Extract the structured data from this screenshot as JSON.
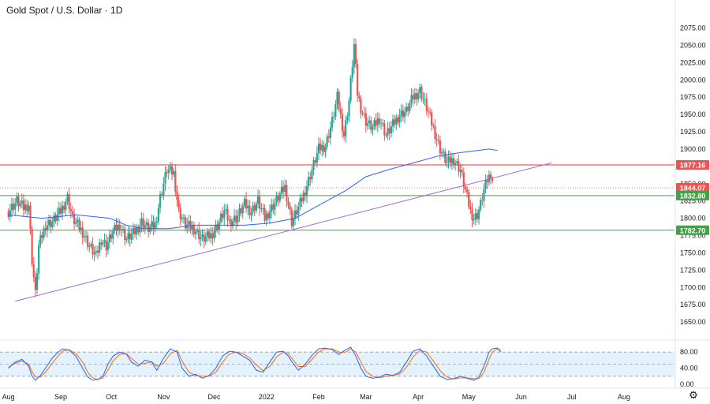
{
  "header": {
    "title": "Gold Spot / U.S. Dollar · 1D"
  },
  "colors": {
    "up": "#26a69a",
    "down": "#ef5350",
    "ma": "#2962ff",
    "trendline": "#9c6ade",
    "resistance": "#e53935",
    "support": "#43a047",
    "price_label": "#ef5350",
    "stoch_k": "#2962ff",
    "stoch_d": "#ff6d00",
    "stoch_band": "#e3f2fd"
  },
  "chart_data": {
    "type": "candlestick",
    "title": "Gold Spot / U.S. Dollar · 1D",
    "price_axis": {
      "range": [
        1625,
        2095
      ],
      "ticks": [
        "2075.00",
        "2050.00",
        "2025.00",
        "2000.00",
        "1975.00",
        "1950.00",
        "1925.00",
        "1900.00",
        "1875.00",
        "1850.00",
        "1825.00",
        "1800.00",
        "1775.00",
        "1750.00",
        "1725.00",
        "1700.00",
        "1675.00",
        "1650.00"
      ]
    },
    "time_axis": {
      "labels": [
        {
          "label": "Aug",
          "day": 0
        },
        {
          "label": "Sep",
          "day": 31
        },
        {
          "label": "Oct",
          "day": 61
        },
        {
          "label": "Nov",
          "day": 92
        },
        {
          "label": "Dec",
          "day": 122
        },
        {
          "label": "2022",
          "day": 153
        },
        {
          "label": "Feb",
          "day": 184
        },
        {
          "label": "Mar",
          "day": 212
        },
        {
          "label": "Apr",
          "day": 243
        },
        {
          "label": "May",
          "day": 273
        },
        {
          "label": "Jun",
          "day": 304
        },
        {
          "label": "Jul",
          "day": 334
        },
        {
          "label": "Aug",
          "day": 365
        }
      ],
      "range_days": [
        -5,
        395
      ]
    },
    "horizontal_levels": [
      {
        "value": 1877.16,
        "label": "1877.16",
        "kind": "resistance"
      },
      {
        "value": 1844.07,
        "label": "1844.07",
        "kind": "current"
      },
      {
        "value": 1832.8,
        "label": "1832.80",
        "kind": "support"
      },
      {
        "value": 1782.7,
        "label": "1782.70",
        "kind": "support"
      }
    ],
    "trendline": {
      "from": {
        "day": 4,
        "price": 1680
      },
      "to": {
        "day": 322,
        "price": 1880
      }
    },
    "ohlc_anchor_prices": [
      [
        0,
        1810
      ],
      [
        5,
        1825
      ],
      [
        9,
        1815
      ],
      [
        12,
        1820
      ],
      [
        14,
        1740
      ],
      [
        16,
        1690
      ],
      [
        18,
        1760
      ],
      [
        22,
        1790
      ],
      [
        26,
        1795
      ],
      [
        31,
        1810
      ],
      [
        35,
        1830
      ],
      [
        38,
        1800
      ],
      [
        44,
        1780
      ],
      [
        48,
        1760
      ],
      [
        52,
        1745
      ],
      [
        55,
        1770
      ],
      [
        58,
        1760
      ],
      [
        62,
        1780
      ],
      [
        66,
        1790
      ],
      [
        70,
        1770
      ],
      [
        75,
        1780
      ],
      [
        79,
        1795
      ],
      [
        83,
        1785
      ],
      [
        87,
        1790
      ],
      [
        90,
        1830
      ],
      [
        94,
        1870
      ],
      [
        98,
        1865
      ],
      [
        101,
        1810
      ],
      [
        105,
        1790
      ],
      [
        110,
        1785
      ],
      [
        115,
        1770
      ],
      [
        120,
        1775
      ],
      [
        124,
        1790
      ],
      [
        128,
        1810
      ],
      [
        131,
        1795
      ],
      [
        135,
        1800
      ],
      [
        140,
        1820
      ],
      [
        144,
        1810
      ],
      [
        148,
        1825
      ],
      [
        152,
        1800
      ],
      [
        156,
        1815
      ],
      [
        160,
        1830
      ],
      [
        164,
        1845
      ],
      [
        168,
        1795
      ],
      [
        172,
        1815
      ],
      [
        176,
        1840
      ],
      [
        180,
        1870
      ],
      [
        184,
        1900
      ],
      [
        188,
        1905
      ],
      [
        192,
        1940
      ],
      [
        195,
        1975
      ],
      [
        199,
        1920
      ],
      [
        202,
        1970
      ],
      [
        205,
        2050
      ],
      [
        207,
        1980
      ],
      [
        209,
        1960
      ],
      [
        212,
        1940
      ],
      [
        216,
        1930
      ],
      [
        220,
        1945
      ],
      [
        224,
        1920
      ],
      [
        228,
        1935
      ],
      [
        232,
        1950
      ],
      [
        236,
        1955
      ],
      [
        240,
        1975
      ],
      [
        244,
        1985
      ],
      [
        248,
        1960
      ],
      [
        252,
        1930
      ],
      [
        256,
        1900
      ],
      [
        260,
        1880
      ],
      [
        264,
        1885
      ],
      [
        268,
        1870
      ],
      [
        271,
        1840
      ],
      [
        274,
        1810
      ],
      [
        276,
        1800
      ],
      [
        278,
        1805
      ],
      [
        280,
        1820
      ],
      [
        282,
        1840
      ],
      [
        284,
        1855
      ],
      [
        286,
        1865
      ],
      [
        287,
        1856
      ]
    ],
    "moving_average": {
      "points": [
        [
          0,
          1805
        ],
        [
          20,
          1800
        ],
        [
          40,
          1805
        ],
        [
          60,
          1800
        ],
        [
          70,
          1790
        ],
        [
          80,
          1785
        ],
        [
          95,
          1785
        ],
        [
          110,
          1790
        ],
        [
          125,
          1790
        ],
        [
          140,
          1790
        ],
        [
          155,
          1793
        ],
        [
          170,
          1800
        ],
        [
          185,
          1820
        ],
        [
          200,
          1840
        ],
        [
          212,
          1860
        ],
        [
          225,
          1870
        ],
        [
          240,
          1880
        ],
        [
          255,
          1890
        ],
        [
          268,
          1895
        ],
        [
          275,
          1897
        ],
        [
          285,
          1900
        ],
        [
          290,
          1898
        ]
      ]
    },
    "stochastic": {
      "range": [
        0,
        100
      ],
      "ticks": [
        "80.00",
        "40.00",
        "0.00"
      ],
      "bands": [
        20,
        50,
        80
      ],
      "k_values": [
        [
          0,
          40
        ],
        [
          4,
          55
        ],
        [
          8,
          62
        ],
        [
          12,
          45
        ],
        [
          14,
          20
        ],
        [
          16,
          10
        ],
        [
          19,
          22
        ],
        [
          22,
          40
        ],
        [
          26,
          65
        ],
        [
          29,
          78
        ],
        [
          32,
          88
        ],
        [
          36,
          85
        ],
        [
          40,
          70
        ],
        [
          44,
          40
        ],
        [
          47,
          18
        ],
        [
          50,
          10
        ],
        [
          53,
          12
        ],
        [
          56,
          20
        ],
        [
          59,
          50
        ],
        [
          62,
          70
        ],
        [
          66,
          80
        ],
        [
          70,
          75
        ],
        [
          73,
          55
        ],
        [
          77,
          45
        ],
        [
          81,
          60
        ],
        [
          85,
          55
        ],
        [
          88,
          35
        ],
        [
          92,
          65
        ],
        [
          96,
          88
        ],
        [
          100,
          80
        ],
        [
          103,
          40
        ],
        [
          107,
          20
        ],
        [
          111,
          25
        ],
        [
          115,
          15
        ],
        [
          119,
          22
        ],
        [
          123,
          40
        ],
        [
          127,
          70
        ],
        [
          131,
          82
        ],
        [
          135,
          80
        ],
        [
          139,
          70
        ],
        [
          143,
          60
        ],
        [
          147,
          35
        ],
        [
          151,
          30
        ],
        [
          155,
          55
        ],
        [
          159,
          80
        ],
        [
          163,
          82
        ],
        [
          166,
          70
        ],
        [
          169,
          50
        ],
        [
          172,
          35
        ],
        [
          176,
          50
        ],
        [
          180,
          72
        ],
        [
          184,
          88
        ],
        [
          188,
          90
        ],
        [
          192,
          86
        ],
        [
          196,
          74
        ],
        [
          200,
          86
        ],
        [
          203,
          92
        ],
        [
          206,
          70
        ],
        [
          209,
          40
        ],
        [
          212,
          20
        ],
        [
          216,
          15
        ],
        [
          220,
          18
        ],
        [
          224,
          25
        ],
        [
          228,
          22
        ],
        [
          232,
          30
        ],
        [
          236,
          55
        ],
        [
          240,
          82
        ],
        [
          244,
          88
        ],
        [
          248,
          70
        ],
        [
          252,
          45
        ],
        [
          256,
          20
        ],
        [
          260,
          12
        ],
        [
          264,
          14
        ],
        [
          268,
          20
        ],
        [
          272,
          15
        ],
        [
          276,
          10
        ],
        [
          279,
          18
        ],
        [
          282,
          45
        ],
        [
          285,
          80
        ],
        [
          287,
          88
        ],
        [
          290,
          90
        ],
        [
          292,
          80
        ]
      ],
      "d_values": [
        [
          0,
          42
        ],
        [
          4,
          52
        ],
        [
          8,
          58
        ],
        [
          12,
          50
        ],
        [
          14,
          32
        ],
        [
          16,
          18
        ],
        [
          19,
          18
        ],
        [
          22,
          30
        ],
        [
          26,
          52
        ],
        [
          29,
          68
        ],
        [
          32,
          82
        ],
        [
          36,
          86
        ],
        [
          40,
          76
        ],
        [
          44,
          55
        ],
        [
          47,
          30
        ],
        [
          50,
          16
        ],
        [
          53,
          12
        ],
        [
          56,
          16
        ],
        [
          59,
          35
        ],
        [
          62,
          58
        ],
        [
          66,
          74
        ],
        [
          70,
          76
        ],
        [
          73,
          64
        ],
        [
          77,
          50
        ],
        [
          81,
          52
        ],
        [
          85,
          56
        ],
        [
          88,
          45
        ],
        [
          92,
          52
        ],
        [
          96,
          76
        ],
        [
          100,
          84
        ],
        [
          103,
          58
        ],
        [
          107,
          30
        ],
        [
          111,
          22
        ],
        [
          115,
          20
        ],
        [
          119,
          20
        ],
        [
          123,
          30
        ],
        [
          127,
          55
        ],
        [
          131,
          75
        ],
        [
          135,
          80
        ],
        [
          139,
          76
        ],
        [
          143,
          66
        ],
        [
          147,
          48
        ],
        [
          151,
          34
        ],
        [
          155,
          44
        ],
        [
          159,
          68
        ],
        [
          163,
          80
        ],
        [
          166,
          76
        ],
        [
          169,
          60
        ],
        [
          172,
          44
        ],
        [
          176,
          44
        ],
        [
          180,
          62
        ],
        [
          184,
          80
        ],
        [
          188,
          88
        ],
        [
          192,
          88
        ],
        [
          196,
          80
        ],
        [
          200,
          80
        ],
        [
          203,
          88
        ],
        [
          206,
          80
        ],
        [
          209,
          56
        ],
        [
          212,
          32
        ],
        [
          216,
          20
        ],
        [
          220,
          16
        ],
        [
          224,
          20
        ],
        [
          228,
          22
        ],
        [
          232,
          26
        ],
        [
          236,
          42
        ],
        [
          240,
          68
        ],
        [
          244,
          84
        ],
        [
          248,
          80
        ],
        [
          252,
          58
        ],
        [
          256,
          34
        ],
        [
          260,
          18
        ],
        [
          264,
          13
        ],
        [
          268,
          16
        ],
        [
          272,
          16
        ],
        [
          276,
          14
        ],
        [
          279,
          14
        ],
        [
          282,
          30
        ],
        [
          285,
          62
        ],
        [
          287,
          80
        ],
        [
          290,
          88
        ],
        [
          292,
          85
        ]
      ]
    }
  }
}
